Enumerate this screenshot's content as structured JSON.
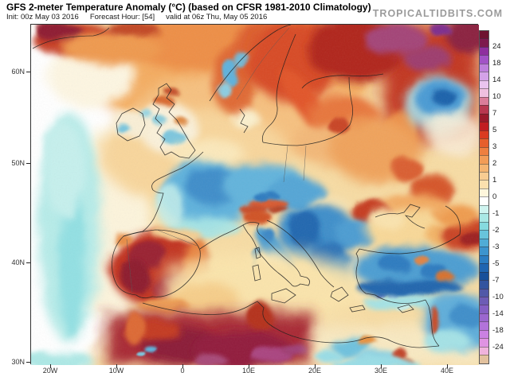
{
  "header": {
    "title": "GFS 2-meter Temperature Anomaly (°C) (based on CFSR 1981-2010 Climatology)",
    "init": "Init: 00z May 03 2016",
    "forecast_hour": "Forecast Hour: [54]",
    "valid": "valid at 06z Thu, May 05 2016",
    "logo": "TROPICALTIDBITS.COM"
  },
  "axes": {
    "lat_labels": [
      "60N",
      "50N",
      "40N",
      "30N"
    ],
    "lon_labels": [
      "20W",
      "10W",
      "0",
      "10E",
      "20E",
      "30E",
      "40E"
    ]
  },
  "colorbar": {
    "unit": "°C",
    "labels": [
      "24",
      "18",
      "14",
      "10",
      "7",
      "5",
      "3",
      "2",
      "1",
      "0",
      "-1",
      "-2",
      "-3",
      "-5",
      "-7",
      "-10",
      "-14",
      "-18",
      "-24"
    ],
    "cells": [
      "#6E1230",
      "#7D1A4E",
      "#8E2F9E",
      "#A252C6",
      "#BE7FDC",
      "#D4A2E8",
      "#EAC4EF",
      "#EFC0DF",
      "#DA7D99",
      "#B8384F",
      "#9A1B2B",
      "#C11E22",
      "#DA3B20",
      "#E65F2C",
      "#EE7F3F",
      "#F29C57",
      "#F5B572",
      "#F8CC92",
      "#FBE0AE",
      "#FEF6DC",
      "#FFFFFF",
      "#CFF4F0",
      "#A9E8E5",
      "#86DADF",
      "#68C4DC",
      "#50ACD6",
      "#3C94CE",
      "#2B7DC2",
      "#1F65B1",
      "#17509A",
      "#33549F",
      "#5058A8",
      "#6D5CB5",
      "#845FC3",
      "#9B67CF",
      "#B273DA",
      "#CA81E2",
      "#DF93E2",
      "#EFB3DC",
      "#E2C19E"
    ]
  }
}
